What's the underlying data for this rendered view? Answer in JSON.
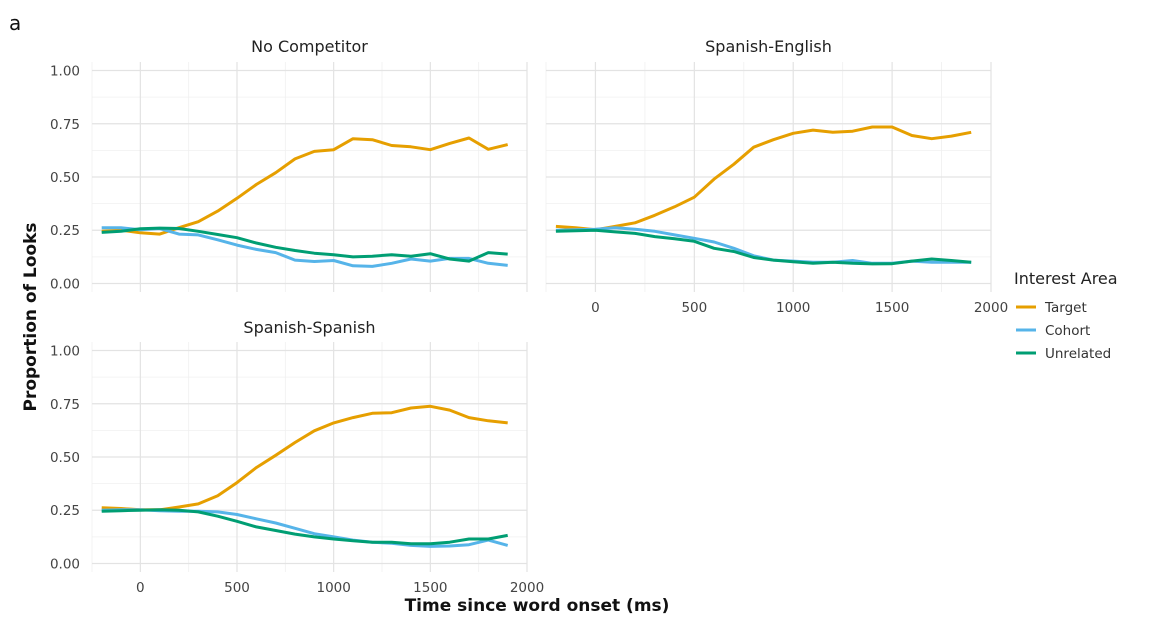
{
  "figure_label": "a",
  "chart_data": {
    "type": "line",
    "xlabel": "Time since word onset (ms)",
    "ylabel": "Proportion of Looks",
    "xlim": [
      -250,
      2000
    ],
    "ylim": [
      -0.04,
      1.04
    ],
    "xticks": [
      0,
      500,
      1000,
      1500,
      2000
    ],
    "xtick_labels": [
      "0",
      "500",
      "1000",
      "1500",
      "2000"
    ],
    "yticks": [
      0,
      0.25,
      0.5,
      0.75,
      1.0
    ],
    "ytick_labels": [
      "0.00",
      "0.25",
      "0.50",
      "0.75",
      "1.00"
    ],
    "grid": true,
    "legend": {
      "title": "Interest Area",
      "placement": "right",
      "entries": [
        {
          "name": "Target",
          "color": "#E69F00"
        },
        {
          "name": "Cohort",
          "color": "#56B4E9"
        },
        {
          "name": "Unrelated",
          "color": "#009E73"
        }
      ]
    },
    "x": [
      -200,
      -100,
      0,
      100,
      200,
      300,
      400,
      500,
      600,
      700,
      800,
      900,
      1000,
      1100,
      1200,
      1300,
      1400,
      1500,
      1600,
      1700,
      1800,
      1900
    ],
    "panels": [
      {
        "title": "No Competitor",
        "series": [
          {
            "name": "Target",
            "values": [
              0.245,
              0.25,
              0.238,
              0.232,
              0.262,
              0.29,
              0.34,
              0.4,
              0.465,
              0.52,
              0.585,
              0.62,
              0.628,
              0.68,
              0.675,
              0.648,
              0.642,
              0.628,
              0.658,
              0.683,
              0.63,
              0.652
            ]
          },
          {
            "name": "Cohort",
            "values": [
              0.262,
              0.262,
              0.252,
              0.258,
              0.232,
              0.228,
              0.205,
              0.18,
              0.16,
              0.145,
              0.11,
              0.103,
              0.108,
              0.083,
              0.08,
              0.095,
              0.115,
              0.105,
              0.118,
              0.118,
              0.095,
              0.085
            ]
          },
          {
            "name": "Unrelated",
            "values": [
              0.24,
              0.245,
              0.257,
              0.26,
              0.258,
              0.245,
              0.23,
              0.215,
              0.19,
              0.17,
              0.155,
              0.142,
              0.135,
              0.125,
              0.128,
              0.135,
              0.128,
              0.14,
              0.115,
              0.105,
              0.145,
              0.138
            ]
          }
        ]
      },
      {
        "title": "Spanish-English",
        "series": [
          {
            "name": "Target",
            "values": [
              0.268,
              0.262,
              0.252,
              0.268,
              0.285,
              0.32,
              0.36,
              0.405,
              0.49,
              0.56,
              0.64,
              0.675,
              0.705,
              0.72,
              0.71,
              0.715,
              0.735,
              0.735,
              0.695,
              0.68,
              0.692,
              0.71
            ]
          },
          {
            "name": "Cohort",
            "values": [
              0.25,
              0.252,
              0.255,
              0.262,
              0.255,
              0.245,
              0.228,
              0.212,
              0.195,
              0.165,
              0.13,
              0.11,
              0.105,
              0.1,
              0.1,
              0.108,
              0.095,
              0.095,
              0.105,
              0.1,
              0.1,
              0.1
            ]
          },
          {
            "name": "Unrelated",
            "values": [
              0.245,
              0.248,
              0.25,
              0.242,
              0.235,
              0.22,
              0.21,
              0.198,
              0.165,
              0.15,
              0.122,
              0.11,
              0.102,
              0.095,
              0.1,
              0.095,
              0.092,
              0.093,
              0.105,
              0.115,
              0.108,
              0.1
            ]
          }
        ]
      },
      {
        "title": "Spanish-Spanish",
        "series": [
          {
            "name": "Target",
            "values": [
              0.262,
              0.258,
              0.252,
              0.252,
              0.265,
              0.28,
              0.318,
              0.38,
              0.45,
              0.508,
              0.568,
              0.623,
              0.66,
              0.685,
              0.705,
              0.708,
              0.73,
              0.738,
              0.72,
              0.685,
              0.67,
              0.66
            ]
          },
          {
            "name": "Cohort",
            "values": [
              0.25,
              0.252,
              0.252,
              0.248,
              0.245,
              0.245,
              0.242,
              0.23,
              0.21,
              0.19,
              0.165,
              0.14,
              0.125,
              0.11,
              0.1,
              0.095,
              0.085,
              0.08,
              0.082,
              0.088,
              0.11,
              0.085
            ]
          },
          {
            "name": "Unrelated",
            "values": [
              0.245,
              0.248,
              0.25,
              0.252,
              0.25,
              0.242,
              0.222,
              0.198,
              0.172,
              0.155,
              0.138,
              0.125,
              0.115,
              0.107,
              0.1,
              0.1,
              0.093,
              0.093,
              0.1,
              0.115,
              0.115,
              0.132
            ]
          }
        ]
      }
    ]
  }
}
